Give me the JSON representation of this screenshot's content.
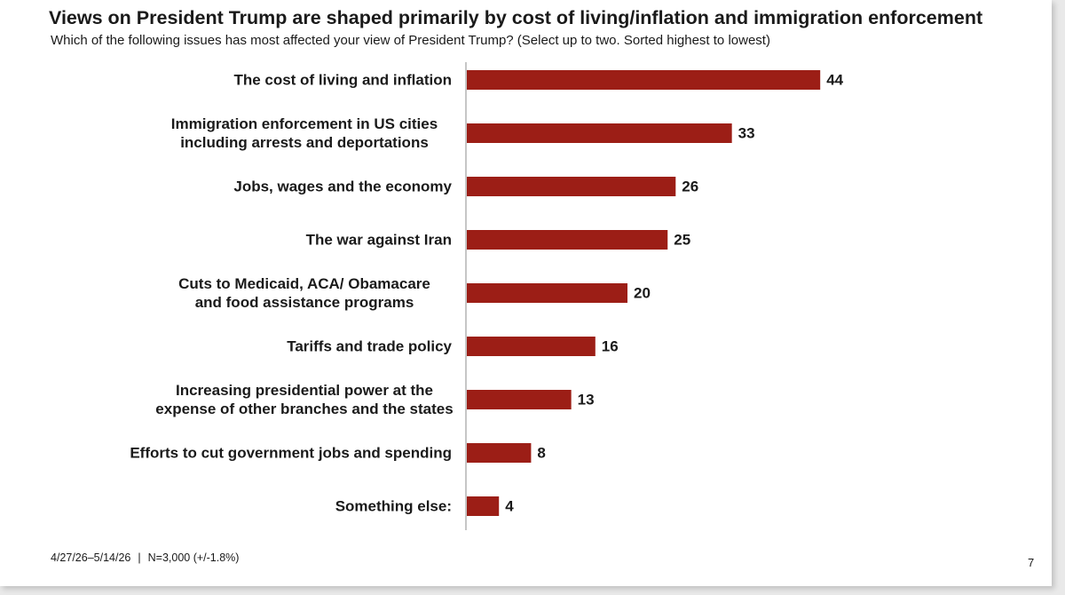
{
  "header": {
    "title": "Views on President Trump are shaped primarily by cost of living/inflation and immigration enforcement",
    "subtitle": "Which of the following issues has most affected your view of President Trump? (Select up to two. Sorted highest to lowest)"
  },
  "footer": {
    "dates": "4/27/26–5/14/26",
    "separator": "|",
    "sample": "N=3,000 (+/-1.8%)",
    "page_number": "7"
  },
  "colors": {
    "bar": "#9c1e16",
    "axis": "#8c8c8c",
    "text": "#1a1a1a"
  },
  "chart_data": {
    "type": "bar",
    "orientation": "horizontal",
    "title": "Views on President Trump are shaped primarily by cost of living/inflation and immigration enforcement",
    "subtitle": "Which of the following issues has most affected your view of President Trump? (Select up to two. Sorted highest to lowest)",
    "categories": [
      [
        "The cost of living and inflation"
      ],
      [
        "Immigration enforcement in US cities",
        "including arrests and deportations"
      ],
      [
        "Jobs, wages and the economy"
      ],
      [
        "The war against Iran"
      ],
      [
        "Cuts to Medicaid, ACA/ Obamacare",
        "and food assistance programs"
      ],
      [
        "Tariffs and trade policy"
      ],
      [
        "Increasing presidential power at the",
        "expense of other branches and the states"
      ],
      [
        "Efforts to cut government jobs and spending"
      ],
      [
        "Something else:"
      ]
    ],
    "values": [
      44,
      33,
      26,
      25,
      20,
      16,
      13,
      8,
      4
    ],
    "xlim": [
      0,
      45
    ],
    "grid": false,
    "legend": "none"
  }
}
